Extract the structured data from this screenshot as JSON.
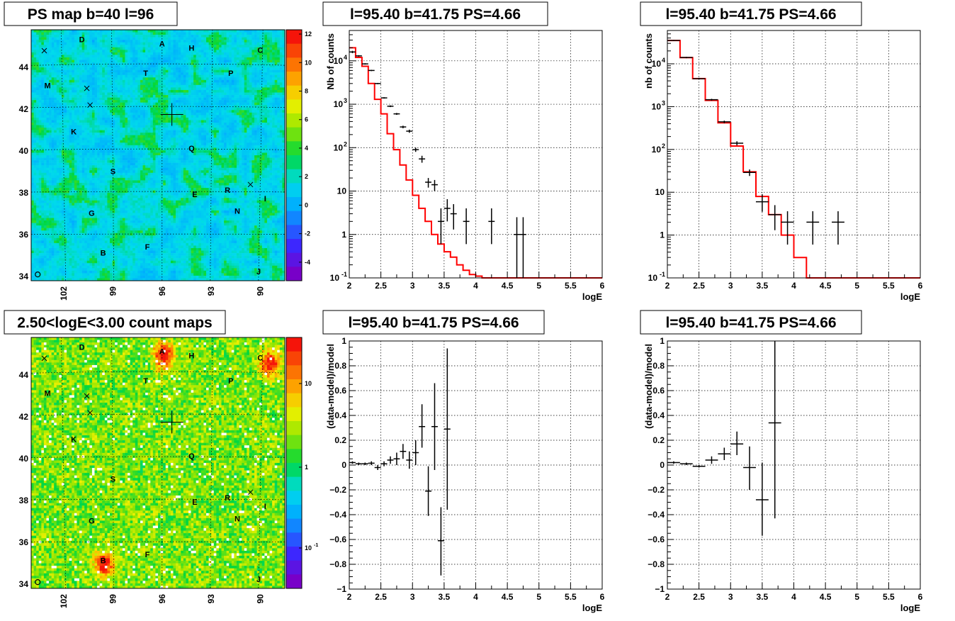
{
  "panels": {
    "ps_map": {
      "title": "PS map b=40 l=96",
      "lon_ticks": [
        "102",
        "99",
        "96",
        "93",
        "90"
      ],
      "lat_ticks": [
        "44",
        "42",
        "40",
        "38",
        "36",
        "34"
      ],
      "palette_ticks": [
        "12",
        "10",
        "8",
        "6",
        "4",
        "2",
        "0",
        "-2",
        "-4"
      ]
    },
    "count_map": {
      "title": "2.50<logE<3.00 count maps",
      "lon_ticks": [
        "102",
        "99",
        "96",
        "93",
        "90"
      ],
      "lat_ticks": [
        "44",
        "42",
        "40",
        "38",
        "36",
        "34"
      ],
      "palette_ticks": [
        "10",
        "1",
        "10",
        "-1"
      ]
    },
    "spectrum_left": {
      "title": "l=95.40 b=41.75 PS=4.66"
    },
    "spectrum_right": {
      "title": "l=95.40 b=41.75 PS=4.66"
    },
    "residual_left": {
      "title": "l=95.40 b=41.75 PS=4.66"
    },
    "residual_right": {
      "title": "l=95.40 b=41.75 PS=4.66"
    }
  },
  "sources": [
    {
      "label": "D",
      "l": 100.9,
      "b": 45.2
    },
    {
      "label": "A",
      "l": 96.0,
      "b": 45.0
    },
    {
      "label": "H",
      "l": 94.2,
      "b": 44.8
    },
    {
      "label": "C",
      "l": 90.0,
      "b": 44.7
    },
    {
      "label": "M",
      "l": 103.0,
      "b": 43.0
    },
    {
      "label": "T",
      "l": 97.0,
      "b": 43.6
    },
    {
      "label": "P",
      "l": 91.8,
      "b": 43.6
    },
    {
      "label": "K",
      "l": 101.4,
      "b": 40.8
    },
    {
      "label": "Q",
      "l": 94.2,
      "b": 40.0
    },
    {
      "label": "S",
      "l": 99.0,
      "b": 38.9
    },
    {
      "label": "E",
      "l": 94.0,
      "b": 37.8
    },
    {
      "label": "R",
      "l": 92.0,
      "b": 38.0
    },
    {
      "label": "I",
      "l": 89.7,
      "b": 37.6
    },
    {
      "label": "G",
      "l": 100.3,
      "b": 36.9
    },
    {
      "label": "N",
      "l": 91.4,
      "b": 37.0
    },
    {
      "label": "F",
      "l": 96.9,
      "b": 35.3
    },
    {
      "label": "B",
      "l": 99.6,
      "b": 35.0
    },
    {
      "label": "O",
      "l": 103.6,
      "b": 34.1
    },
    {
      "label": "J",
      "l": 90.1,
      "b": 34.1
    }
  ],
  "chart_data": [
    {
      "panel": "ps_map",
      "type": "heatmap",
      "title": "PS map b=40 l=96",
      "xlabel": "",
      "ylabel": "",
      "xlim": [
        104,
        88.5
      ],
      "ylim": [
        33.8,
        45.8
      ],
      "zlim": [
        -5,
        12
      ],
      "palette": "rainbow",
      "marker": {
        "l": 95.4,
        "b": 41.75
      },
      "crosses": [
        {
          "l": 103.2,
          "b": 44.8
        },
        {
          "l": 100.6,
          "b": 43.0
        },
        {
          "l": 100.4,
          "b": 42.2
        },
        {
          "l": 90.6,
          "b": 38.4
        }
      ]
    },
    {
      "panel": "count_map",
      "type": "heatmap",
      "title": "2.50<logE<3.00 count maps",
      "xlabel": "",
      "ylabel": "",
      "xlim": [
        104,
        88.5
      ],
      "ylim": [
        33.8,
        45.8
      ],
      "zscale": "log",
      "palette": "rainbow",
      "hotspots": [
        {
          "l": 96.0,
          "b": 45.0
        },
        {
          "l": 99.6,
          "b": 35.0
        },
        {
          "l": 89.5,
          "b": 44.6
        }
      ],
      "marker": {
        "l": 95.4,
        "b": 41.75
      },
      "crosses": [
        {
          "l": 103.2,
          "b": 44.8
        },
        {
          "l": 100.6,
          "b": 43.0
        },
        {
          "l": 100.4,
          "b": 42.2
        },
        {
          "l": 90.6,
          "b": 38.4
        }
      ]
    },
    {
      "panel": "spectrum_left",
      "type": "line",
      "title": "l=95.40 b=41.75 PS=4.66",
      "xlabel": "logE",
      "ylabel": "Nb of counts",
      "xlim": [
        2,
        6
      ],
      "ylim": [
        0.1,
        50000
      ],
      "yscale": "log",
      "grid": true,
      "x_ticks": [
        "2",
        "2.5",
        "3",
        "3.5",
        "4",
        "4.5",
        "5",
        "5.5",
        "6"
      ],
      "y_ticks": [
        {
          "v": 0.1,
          "base": "10",
          "exp": "-1"
        },
        {
          "v": 1,
          "text": "1"
        },
        {
          "v": 10,
          "text": "10"
        },
        {
          "v": 100,
          "base": "10",
          "exp": "2"
        },
        {
          "v": 1000,
          "base": "10",
          "exp": "3"
        },
        {
          "v": 10000,
          "base": "10",
          "exp": "4"
        }
      ],
      "model_step": {
        "edges": [
          2.0,
          2.1,
          2.2,
          2.3,
          2.4,
          2.5,
          2.6,
          2.7,
          2.8,
          2.9,
          3.0,
          3.1,
          3.2,
          3.3,
          3.4,
          3.5,
          3.6,
          3.7,
          3.8,
          3.9,
          4.0,
          4.1,
          4.2,
          6.0
        ],
        "values": [
          20000,
          12000,
          7500,
          3000,
          1300,
          600,
          210,
          90,
          40,
          18,
          8,
          4,
          2,
          1,
          0.6,
          0.4,
          0.3,
          0.2,
          0.15,
          0.12,
          0.11,
          0.1,
          0.1
        ]
      },
      "data_points": [
        {
          "x": 2.05,
          "y": 16000,
          "xerr": 0.05,
          "ylo": 15000,
          "yhi": 17000
        },
        {
          "x": 2.15,
          "y": 13000,
          "xerr": 0.05,
          "ylo": 12500,
          "yhi": 13500
        },
        {
          "x": 2.25,
          "y": 8500,
          "xerr": 0.05,
          "ylo": 8200,
          "yhi": 8800
        },
        {
          "x": 2.35,
          "y": 6000,
          "xerr": 0.05,
          "ylo": 5800,
          "yhi": 6200
        },
        {
          "x": 2.45,
          "y": 3000,
          "xerr": 0.05,
          "ylo": 2900,
          "yhi": 3100
        },
        {
          "x": 2.55,
          "y": 1400,
          "xerr": 0.05,
          "ylo": 1350,
          "yhi": 1450
        },
        {
          "x": 2.65,
          "y": 900,
          "xerr": 0.05,
          "ylo": 860,
          "yhi": 940
        },
        {
          "x": 2.75,
          "y": 600,
          "xerr": 0.05,
          "ylo": 570,
          "yhi": 630
        },
        {
          "x": 2.85,
          "y": 300,
          "xerr": 0.05,
          "ylo": 280,
          "yhi": 320
        },
        {
          "x": 2.95,
          "y": 240,
          "xerr": 0.05,
          "ylo": 220,
          "yhi": 260
        },
        {
          "x": 3.05,
          "y": 90,
          "xerr": 0.05,
          "ylo": 80,
          "yhi": 100
        },
        {
          "x": 3.15,
          "y": 55,
          "xerr": 0.05,
          "ylo": 45,
          "yhi": 65
        },
        {
          "x": 3.25,
          "y": 16,
          "xerr": 0.05,
          "ylo": 12,
          "yhi": 20
        },
        {
          "x": 3.35,
          "y": 14,
          "xerr": 0.05,
          "ylo": 10,
          "yhi": 18
        },
        {
          "x": 3.45,
          "y": 2,
          "xerr": 0.05,
          "ylo": 0.6,
          "yhi": 4
        },
        {
          "x": 3.55,
          "y": 4,
          "xerr": 0.05,
          "ylo": 2,
          "yhi": 6.5
        },
        {
          "x": 3.65,
          "y": 3,
          "xerr": 0.05,
          "ylo": 1.3,
          "yhi": 5
        },
        {
          "x": 3.85,
          "y": 2,
          "xerr": 0.05,
          "ylo": 0.6,
          "yhi": 4
        },
        {
          "x": 4.25,
          "y": 2,
          "xerr": 0.05,
          "ylo": 0.6,
          "yhi": 4
        },
        {
          "x": 4.65,
          "y": 1,
          "xerr": 0.05,
          "ylo": 0.1,
          "yhi": 2.5
        },
        {
          "x": 4.75,
          "y": 1,
          "xerr": 0.05,
          "ylo": 0.1,
          "yhi": 2.5
        }
      ]
    },
    {
      "panel": "spectrum_right",
      "type": "line",
      "title": "l=95.40 b=41.75 PS=4.66",
      "xlabel": "logE",
      "ylabel": "nb of counts",
      "xlim": [
        2,
        6
      ],
      "ylim": [
        0.1,
        60000
      ],
      "yscale": "log",
      "grid": true,
      "x_ticks": [
        "2",
        "2.5",
        "3",
        "3.5",
        "4",
        "4.5",
        "5",
        "5.5",
        "6"
      ],
      "y_ticks": [
        {
          "v": 0.1,
          "base": "10",
          "exp": "-1"
        },
        {
          "v": 1,
          "text": "1"
        },
        {
          "v": 10,
          "text": "10"
        },
        {
          "v": 100,
          "base": "10",
          "exp": "2"
        },
        {
          "v": 1000,
          "base": "10",
          "exp": "3"
        },
        {
          "v": 10000,
          "base": "10",
          "exp": "4"
        }
      ],
      "model_step": {
        "edges": [
          2.0,
          2.2,
          2.4,
          2.6,
          2.8,
          3.0,
          3.2,
          3.4,
          3.6,
          3.8,
          4.0,
          4.2,
          6.0
        ],
        "values": [
          35000,
          14000,
          4500,
          1400,
          420,
          120,
          30,
          8,
          3,
          1,
          0.3,
          0.1
        ]
      },
      "data_points": [
        {
          "x": 2.1,
          "y": 35000,
          "xerr": 0.1,
          "ylo": 34000,
          "yhi": 36000
        },
        {
          "x": 2.3,
          "y": 14000,
          "xerr": 0.1,
          "ylo": 13500,
          "yhi": 14500
        },
        {
          "x": 2.5,
          "y": 4500,
          "xerr": 0.1,
          "ylo": 4300,
          "yhi": 4700
        },
        {
          "x": 2.7,
          "y": 1450,
          "xerr": 0.1,
          "ylo": 1380,
          "yhi": 1520
        },
        {
          "x": 2.9,
          "y": 440,
          "xerr": 0.1,
          "ylo": 410,
          "yhi": 470
        },
        {
          "x": 3.1,
          "y": 140,
          "xerr": 0.1,
          "ylo": 125,
          "yhi": 155
        },
        {
          "x": 3.3,
          "y": 29,
          "xerr": 0.1,
          "ylo": 24,
          "yhi": 34
        },
        {
          "x": 3.5,
          "y": 6,
          "xerr": 0.1,
          "ylo": 3.5,
          "yhi": 9
        },
        {
          "x": 3.7,
          "y": 3,
          "xerr": 0.1,
          "ylo": 1.3,
          "yhi": 5
        },
        {
          "x": 3.9,
          "y": 2,
          "xerr": 0.1,
          "ylo": 0.6,
          "yhi": 3.6
        },
        {
          "x": 4.3,
          "y": 2,
          "xerr": 0.1,
          "ylo": 0.6,
          "yhi": 3.6
        },
        {
          "x": 4.7,
          "y": 2,
          "xerr": 0.1,
          "ylo": 0.6,
          "yhi": 3.6
        }
      ]
    },
    {
      "panel": "residual_left",
      "type": "scatter",
      "title": "l=95.40 b=41.75 PS=4.66",
      "xlabel": "logE",
      "ylabel": "(data-model)/model",
      "xlim": [
        2,
        6
      ],
      "ylim": [
        -1,
        1
      ],
      "grid": true,
      "x_ticks": [
        "2",
        "2.5",
        "3",
        "3.5",
        "4",
        "4.5",
        "5",
        "5.5",
        "6"
      ],
      "y_ticks": [
        "-1",
        "-0.8",
        "-0.6",
        "-0.4",
        "-0.2",
        "0",
        "0.2",
        "0.4",
        "0.6",
        "0.8",
        "1"
      ],
      "data_points": [
        {
          "x": 2.05,
          "y": 0.02,
          "xerr": 0.05,
          "ylo": 0.01,
          "yhi": 0.03
        },
        {
          "x": 2.15,
          "y": 0.01,
          "xerr": 0.05,
          "ylo": 0.0,
          "yhi": 0.02
        },
        {
          "x": 2.25,
          "y": 0.01,
          "xerr": 0.05,
          "ylo": 0.0,
          "yhi": 0.02
        },
        {
          "x": 2.35,
          "y": 0.015,
          "xerr": 0.05,
          "ylo": 0.0,
          "yhi": 0.03
        },
        {
          "x": 2.45,
          "y": -0.02,
          "xerr": 0.05,
          "ylo": -0.04,
          "yhi": 0.0
        },
        {
          "x": 2.55,
          "y": 0.01,
          "xerr": 0.05,
          "ylo": -0.01,
          "yhi": 0.03
        },
        {
          "x": 2.65,
          "y": 0.04,
          "xerr": 0.05,
          "ylo": 0.01,
          "yhi": 0.07
        },
        {
          "x": 2.75,
          "y": 0.05,
          "xerr": 0.05,
          "ylo": 0.0,
          "yhi": 0.1
        },
        {
          "x": 2.85,
          "y": 0.11,
          "xerr": 0.05,
          "ylo": 0.05,
          "yhi": 0.17
        },
        {
          "x": 2.95,
          "y": 0.04,
          "xerr": 0.05,
          "ylo": -0.03,
          "yhi": 0.11
        },
        {
          "x": 3.05,
          "y": 0.1,
          "xerr": 0.05,
          "ylo": 0.0,
          "yhi": 0.2
        },
        {
          "x": 3.15,
          "y": 0.31,
          "xerr": 0.05,
          "ylo": 0.14,
          "yhi": 0.49
        },
        {
          "x": 3.25,
          "y": -0.21,
          "xerr": 0.05,
          "ylo": -0.41,
          "yhi": -0.01
        },
        {
          "x": 3.35,
          "y": 0.31,
          "xerr": 0.05,
          "ylo": -0.04,
          "yhi": 0.66
        },
        {
          "x": 3.45,
          "y": -0.61,
          "xerr": 0.05,
          "ylo": -0.89,
          "yhi": -0.34
        },
        {
          "x": 3.55,
          "y": 0.29,
          "xerr": 0.05,
          "ylo": -0.36,
          "yhi": 0.94
        }
      ]
    },
    {
      "panel": "residual_right",
      "type": "scatter",
      "title": "l=95.40 b=41.75 PS=4.66",
      "xlabel": "logE",
      "ylabel": "(data-model)/model",
      "xlim": [
        2,
        6
      ],
      "ylim": [
        -1,
        1
      ],
      "grid": true,
      "x_ticks": [
        "2",
        "2.5",
        "3",
        "3.5",
        "4",
        "4.5",
        "5",
        "5.5",
        "6"
      ],
      "y_ticks": [
        "-1",
        "-0.8",
        "-0.6",
        "-0.4",
        "-0.2",
        "0",
        "0.2",
        "0.4",
        "0.6",
        "0.8",
        "1"
      ],
      "data_points": [
        {
          "x": 2.1,
          "y": 0.02,
          "xerr": 0.1,
          "ylo": 0.01,
          "yhi": 0.03
        },
        {
          "x": 2.3,
          "y": 0.01,
          "xerr": 0.1,
          "ylo": 0.0,
          "yhi": 0.02
        },
        {
          "x": 2.5,
          "y": -0.01,
          "xerr": 0.1,
          "ylo": -0.02,
          "yhi": 0.0
        },
        {
          "x": 2.7,
          "y": 0.04,
          "xerr": 0.1,
          "ylo": 0.01,
          "yhi": 0.07
        },
        {
          "x": 2.9,
          "y": 0.09,
          "xerr": 0.1,
          "ylo": 0.04,
          "yhi": 0.14
        },
        {
          "x": 3.1,
          "y": 0.17,
          "xerr": 0.1,
          "ylo": 0.08,
          "yhi": 0.27
        },
        {
          "x": 3.3,
          "y": -0.02,
          "xerr": 0.1,
          "ylo": -0.2,
          "yhi": 0.15
        },
        {
          "x": 3.5,
          "y": -0.28,
          "xerr": 0.1,
          "ylo": -0.57,
          "yhi": 0.02
        },
        {
          "x": 3.7,
          "y": 0.34,
          "xerr": 0.1,
          "ylo": -0.43,
          "yhi": 1.0
        }
      ]
    }
  ]
}
